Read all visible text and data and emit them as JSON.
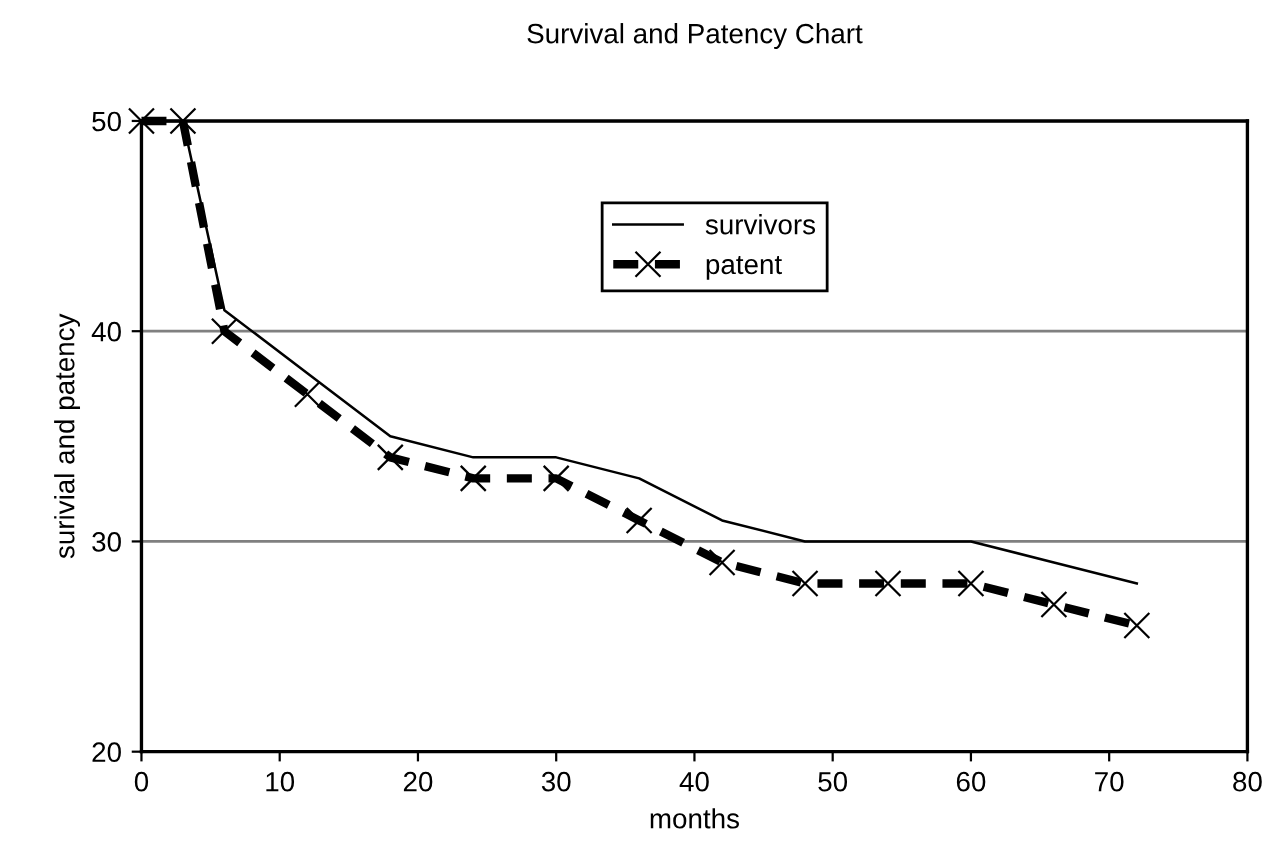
{
  "chart_data": {
    "type": "line",
    "title": "Survival and Patency Chart",
    "xlabel": "months",
    "ylabel": "surivial and patency",
    "x": [
      0,
      3,
      6,
      12,
      18,
      24,
      30,
      36,
      42,
      48,
      54,
      60,
      66,
      72
    ],
    "series": [
      {
        "name": "survivors",
        "color": "#000000",
        "line_style": "solid",
        "marker": "none",
        "values": [
          50,
          50,
          41,
          38,
          35,
          34,
          34,
          33,
          31,
          30,
          30,
          30,
          29,
          28
        ]
      },
      {
        "name": "patent",
        "color": "#000000",
        "line_style": "dashed",
        "marker": "cross",
        "values": [
          50,
          50,
          40,
          37,
          34,
          33,
          33,
          31,
          29,
          28,
          28,
          28,
          27,
          26
        ]
      }
    ],
    "xlim": [
      0,
      80
    ],
    "xticks": [
      0,
      10,
      20,
      30,
      40,
      50,
      60,
      70,
      80
    ],
    "ylim": [
      20,
      50
    ],
    "yticks": [
      20,
      30,
      40,
      50
    ],
    "grid": "y",
    "legend": "top right"
  }
}
